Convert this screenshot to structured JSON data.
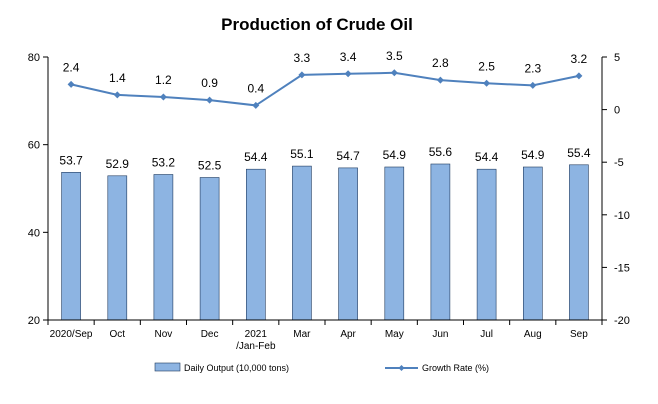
{
  "chart_data": {
    "type": "bar",
    "title": "Production of Crude Oil",
    "categories": [
      [
        "2020/Sep"
      ],
      [
        "Oct"
      ],
      [
        "Nov"
      ],
      [
        "Dec"
      ],
      [
        "2021",
        "/Jan-Feb"
      ],
      [
        "Mar"
      ],
      [
        "Apr"
      ],
      [
        "May"
      ],
      [
        "Jun"
      ],
      [
        "Jul"
      ],
      [
        "Aug"
      ],
      [
        "Sep"
      ]
    ],
    "series": [
      {
        "name": "Daily Output (10,000 tons)",
        "type": "bar",
        "axis": "left",
        "color": "#8DB4E2",
        "values": [
          53.7,
          52.9,
          53.2,
          52.5,
          54.4,
          55.1,
          54.7,
          54.9,
          55.6,
          54.4,
          54.9,
          55.4
        ]
      },
      {
        "name": "Growth Rate (%)",
        "type": "line",
        "axis": "right",
        "color": "#4F81BD",
        "values": [
          2.4,
          1.4,
          1.2,
          0.9,
          0.4,
          3.3,
          3.4,
          3.5,
          2.8,
          2.5,
          2.3,
          3.2
        ]
      }
    ],
    "y_left": {
      "min": 20,
      "max": 80,
      "ticks": [
        20,
        40,
        60,
        80
      ]
    },
    "y_right": {
      "min": -20,
      "max": 5,
      "ticks": [
        -20,
        -15,
        -10,
        -5,
        0,
        5
      ]
    },
    "grid": false,
    "legend": "bottom"
  }
}
